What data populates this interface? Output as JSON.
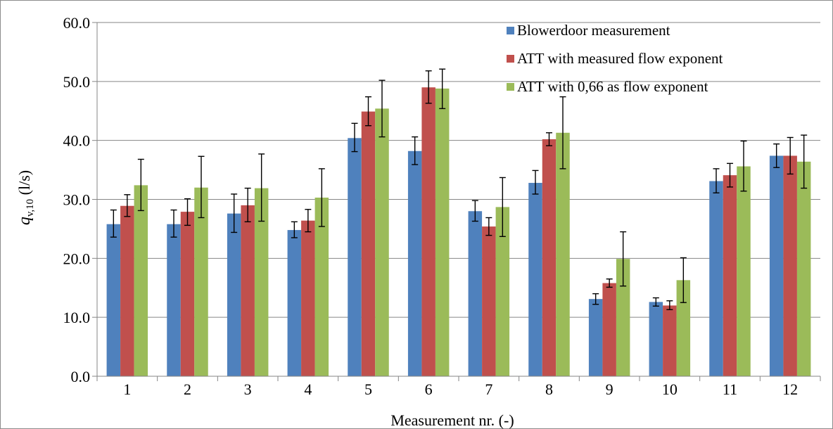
{
  "chart_data": {
    "type": "bar",
    "xlabel": "Measurement nr. (-)",
    "ylabel_main": "q",
    "ylabel_sub": "v,10",
    "ylabel_unit": " (l/s)",
    "ylim": [
      0,
      60
    ],
    "yticks": [
      "0.0",
      "10.0",
      "20.0",
      "30.0",
      "40.0",
      "50.0",
      "60.0"
    ],
    "ytick_values": [
      0,
      10,
      20,
      30,
      40,
      50,
      60
    ],
    "grid": true,
    "legend_position": "top-right",
    "categories": [
      "1",
      "2",
      "3",
      "4",
      "5",
      "6",
      "7",
      "8",
      "9",
      "10",
      "11",
      "12"
    ],
    "series": [
      {
        "name": "Blowerdoor measurement",
        "color": "#4f81bd",
        "values": [
          25.8,
          25.8,
          27.6,
          24.8,
          40.4,
          38.2,
          28.0,
          32.8,
          13.1,
          12.6,
          33.1,
          37.4
        ],
        "error_low": [
          23.6,
          23.6,
          24.4,
          23.5,
          38.1,
          35.9,
          26.3,
          30.9,
          12.2,
          11.9,
          31.1,
          35.4
        ],
        "error_high": [
          28.2,
          28.2,
          30.9,
          26.2,
          42.9,
          40.6,
          29.8,
          34.9,
          14.0,
          13.3,
          35.2,
          39.4
        ]
      },
      {
        "name": "ATT with measured flow exponent",
        "color": "#c0504d",
        "values": [
          28.9,
          27.9,
          29.0,
          26.4,
          44.9,
          49.0,
          25.4,
          40.2,
          15.8,
          12.0,
          34.1,
          37.4
        ],
        "error_low": [
          27.1,
          25.6,
          26.2,
          24.5,
          42.5,
          46.3,
          23.9,
          39.1,
          15.1,
          11.3,
          32.1,
          34.3
        ],
        "error_high": [
          30.8,
          30.1,
          31.9,
          28.3,
          47.4,
          51.8,
          26.9,
          41.3,
          16.5,
          12.8,
          36.1,
          40.5
        ]
      },
      {
        "name": "ATT with 0,66 as flow exponent",
        "color": "#9bbb59",
        "values": [
          32.4,
          32.0,
          31.9,
          30.3,
          45.4,
          48.8,
          28.7,
          41.3,
          19.9,
          16.3,
          35.6,
          36.4
        ],
        "error_low": [
          28.1,
          26.9,
          26.3,
          25.4,
          40.6,
          45.4,
          23.7,
          35.2,
          15.3,
          12.5,
          31.4,
          31.9
        ],
        "error_high": [
          36.8,
          37.3,
          37.7,
          35.2,
          50.2,
          52.1,
          33.7,
          47.4,
          24.5,
          20.1,
          39.9,
          40.9
        ]
      }
    ]
  }
}
